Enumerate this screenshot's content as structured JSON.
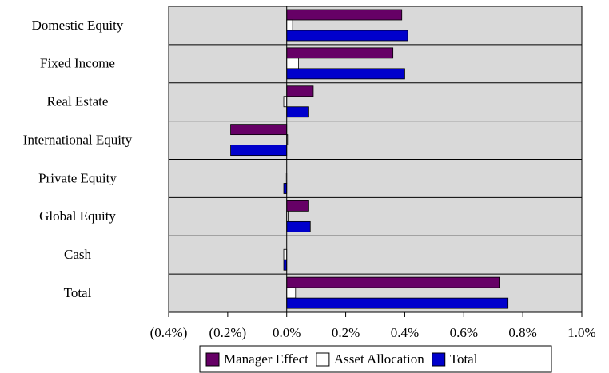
{
  "chart_data": {
    "type": "hbar",
    "categories": [
      "Domestic Equity",
      "Fixed Income",
      "Real Estate",
      "International Equity",
      "Private Equity",
      "Global Equity",
      "Cash",
      "Total"
    ],
    "series": [
      {
        "name": "Manager Effect",
        "color": "#660066",
        "values": [
          0.39,
          0.36,
          0.09,
          -0.19,
          0,
          0.075,
          0,
          0.72
        ]
      },
      {
        "name": "Asset Allocation",
        "color": "#ffffff",
        "values": [
          0.02,
          0.04,
          -0.01,
          0.003,
          -0.005,
          0.005,
          -0.01,
          0.03
        ]
      },
      {
        "name": "Total",
        "color": "#0000cc",
        "values": [
          0.41,
          0.4,
          0.075,
          -0.19,
          -0.01,
          0.08,
          -0.01,
          0.75
        ]
      }
    ],
    "xlim": [
      -0.4,
      1.0
    ],
    "xticks": [
      {
        "value": -0.4,
        "label": "(0.4%)"
      },
      {
        "value": -0.2,
        "label": "(0.2%)"
      },
      {
        "value": 0,
        "label": "0.0%"
      },
      {
        "value": 0.2,
        "label": "0.2%"
      },
      {
        "value": 0.4,
        "label": "0.4%"
      },
      {
        "value": 0.6,
        "label": "0.6%"
      },
      {
        "value": 0.8,
        "label": "0.8%"
      },
      {
        "value": 1.0,
        "label": "1.0%"
      }
    ],
    "negative_tick_color": "#ff0000",
    "plot_background": "#d9d9d9",
    "legend": "bottom"
  }
}
